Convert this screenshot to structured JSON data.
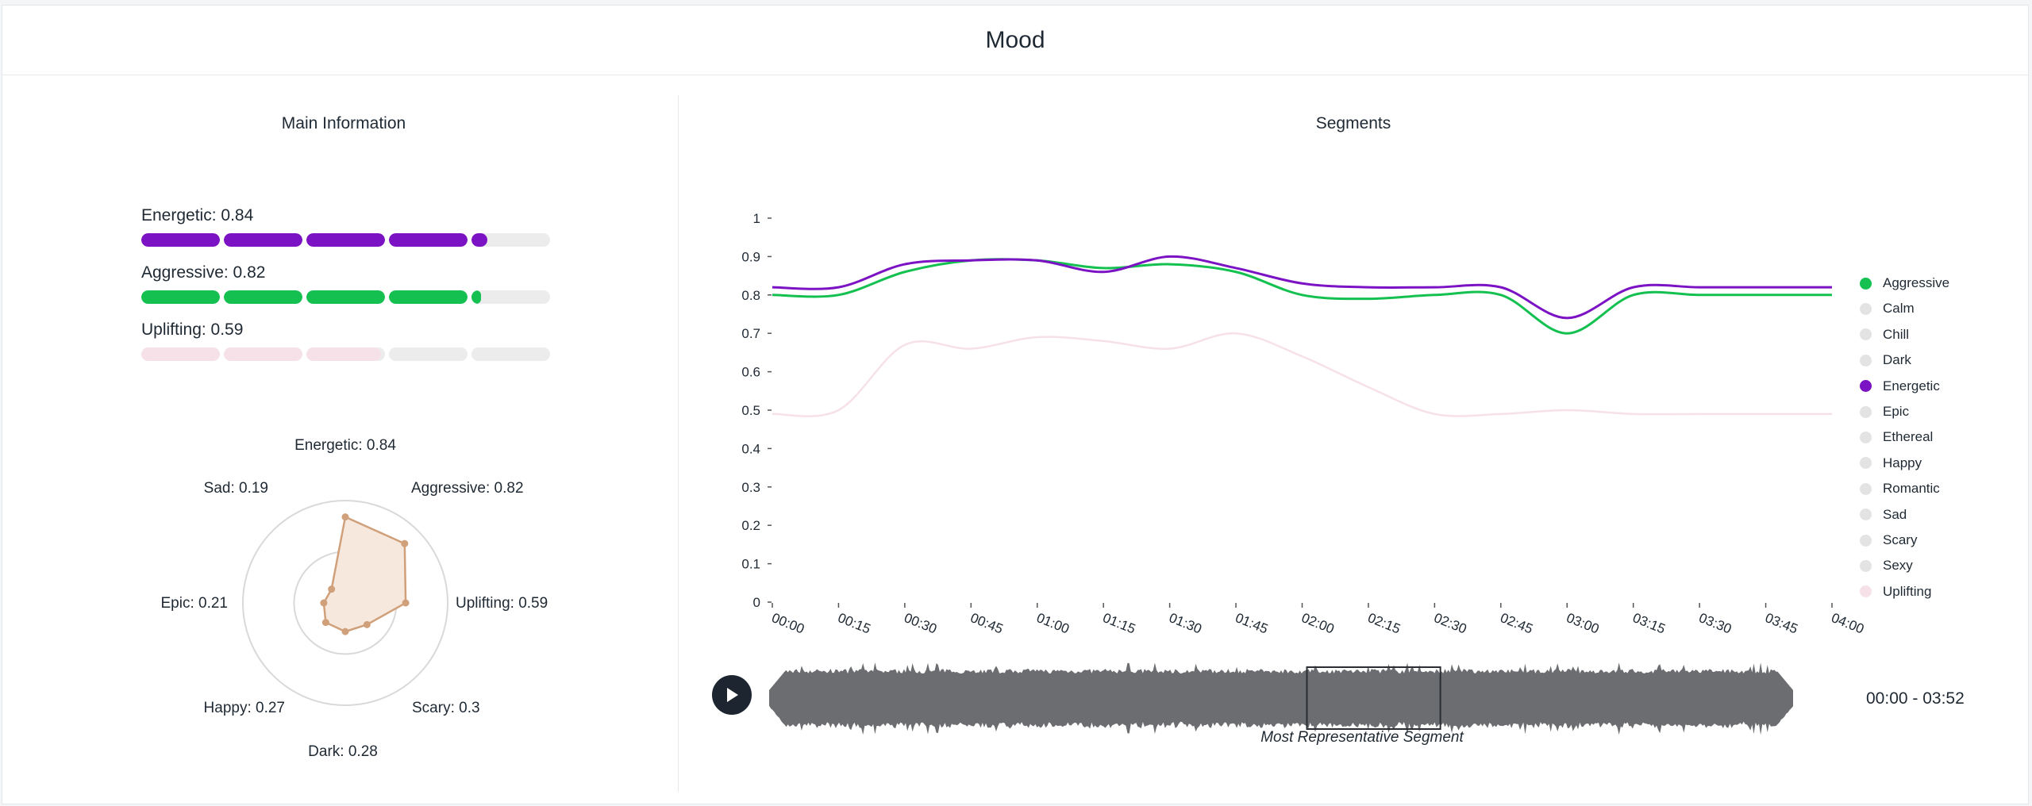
{
  "card": {
    "title": "Mood"
  },
  "main_info": {
    "title": "Main Information",
    "bars": [
      {
        "label": "Energetic: 0.84",
        "value": 0.84,
        "color": "#7b12c4"
      },
      {
        "label": "Aggressive: 0.82",
        "value": 0.82,
        "color": "#14c050"
      },
      {
        "label": "Uplifting: 0.59",
        "value": 0.59,
        "color": "#f7e1e8"
      }
    ],
    "radar": {
      "max": 1,
      "axes": [
        {
          "label": "Energetic: 0.84",
          "value": 0.84
        },
        {
          "label": "Aggressive: 0.82",
          "value": 0.82
        },
        {
          "label": "Uplifting: 0.59",
          "value": 0.59
        },
        {
          "label": "Scary: 0.3",
          "value": 0.3
        },
        {
          "label": "Dark: 0.28",
          "value": 0.28
        },
        {
          "label": "Happy: 0.27",
          "value": 0.27
        },
        {
          "label": "Epic: 0.21",
          "value": 0.21
        },
        {
          "label": "Sad: 0.19",
          "value": 0.19
        }
      ],
      "fill_color": "#f7e8de",
      "stroke_color": "#d0a07a"
    }
  },
  "segments": {
    "title": "Segments",
    "time_range": "00:00 - 03:52",
    "caption": "Most Representative Segment",
    "waveform_color": "#6b6d70",
    "selection": {
      "start_seconds": 120,
      "end_seconds": 150
    },
    "legend": [
      {
        "label": "Aggressive",
        "color": "#14c050",
        "active": true
      },
      {
        "label": "Calm",
        "color": "#e3e3e3",
        "active": false
      },
      {
        "label": "Chill",
        "color": "#e3e3e3",
        "active": false
      },
      {
        "label": "Dark",
        "color": "#e3e3e3",
        "active": false
      },
      {
        "label": "Energetic",
        "color": "#7b12c4",
        "active": true
      },
      {
        "label": "Epic",
        "color": "#e3e3e3",
        "active": false
      },
      {
        "label": "Ethereal",
        "color": "#e3e3e3",
        "active": false
      },
      {
        "label": "Happy",
        "color": "#e3e3e3",
        "active": false
      },
      {
        "label": "Romantic",
        "color": "#e3e3e3",
        "active": false
      },
      {
        "label": "Sad",
        "color": "#e3e3e3",
        "active": false
      },
      {
        "label": "Scary",
        "color": "#e3e3e3",
        "active": false
      },
      {
        "label": "Sexy",
        "color": "#e3e3e3",
        "active": false
      },
      {
        "label": "Uplifting",
        "color": "#f7e1e8",
        "active": true
      }
    ]
  },
  "chart_data": {
    "type": "line",
    "title": "",
    "xlabel": "",
    "ylabel": "",
    "ylim": [
      0,
      1
    ],
    "xlim_seconds": [
      0,
      240
    ],
    "x_tick_labels": [
      "00:00",
      "00:15",
      "00:30",
      "00:45",
      "01:00",
      "01:15",
      "01:30",
      "01:45",
      "02:00",
      "02:15",
      "02:30",
      "02:45",
      "03:00",
      "03:15",
      "03:30",
      "03:45",
      "04:00"
    ],
    "y_tick_labels": [
      "0",
      "0.1",
      "0.2",
      "0.3",
      "0.4",
      "0.5",
      "0.6",
      "0.7",
      "0.8",
      "0.9",
      "1"
    ],
    "grid": false,
    "legend_position": "right",
    "series": [
      {
        "name": "Energetic",
        "color": "#7b12c4",
        "x_seconds": [
          0,
          15,
          30,
          45,
          60,
          75,
          90,
          105,
          120,
          135,
          150,
          165,
          180,
          195,
          210,
          225,
          240
        ],
        "values": [
          0.82,
          0.82,
          0.88,
          0.89,
          0.89,
          0.86,
          0.9,
          0.87,
          0.83,
          0.82,
          0.82,
          0.82,
          0.74,
          0.82,
          0.82,
          0.82,
          0.82
        ]
      },
      {
        "name": "Aggressive",
        "color": "#14c050",
        "x_seconds": [
          0,
          15,
          30,
          45,
          60,
          75,
          90,
          105,
          120,
          135,
          150,
          165,
          180,
          195,
          210,
          225,
          240
        ],
        "values": [
          0.8,
          0.8,
          0.86,
          0.89,
          0.89,
          0.87,
          0.88,
          0.86,
          0.8,
          0.79,
          0.8,
          0.8,
          0.7,
          0.8,
          0.8,
          0.8,
          0.8
        ]
      },
      {
        "name": "Uplifting",
        "color": "#f7e1e8",
        "x_seconds": [
          0,
          15,
          30,
          45,
          60,
          75,
          90,
          105,
          120,
          135,
          150,
          165,
          180,
          195,
          210,
          225,
          240
        ],
        "values": [
          0.49,
          0.5,
          0.67,
          0.66,
          0.69,
          0.68,
          0.66,
          0.7,
          0.64,
          0.56,
          0.49,
          0.49,
          0.5,
          0.49,
          0.49,
          0.49,
          0.49
        ]
      }
    ]
  }
}
